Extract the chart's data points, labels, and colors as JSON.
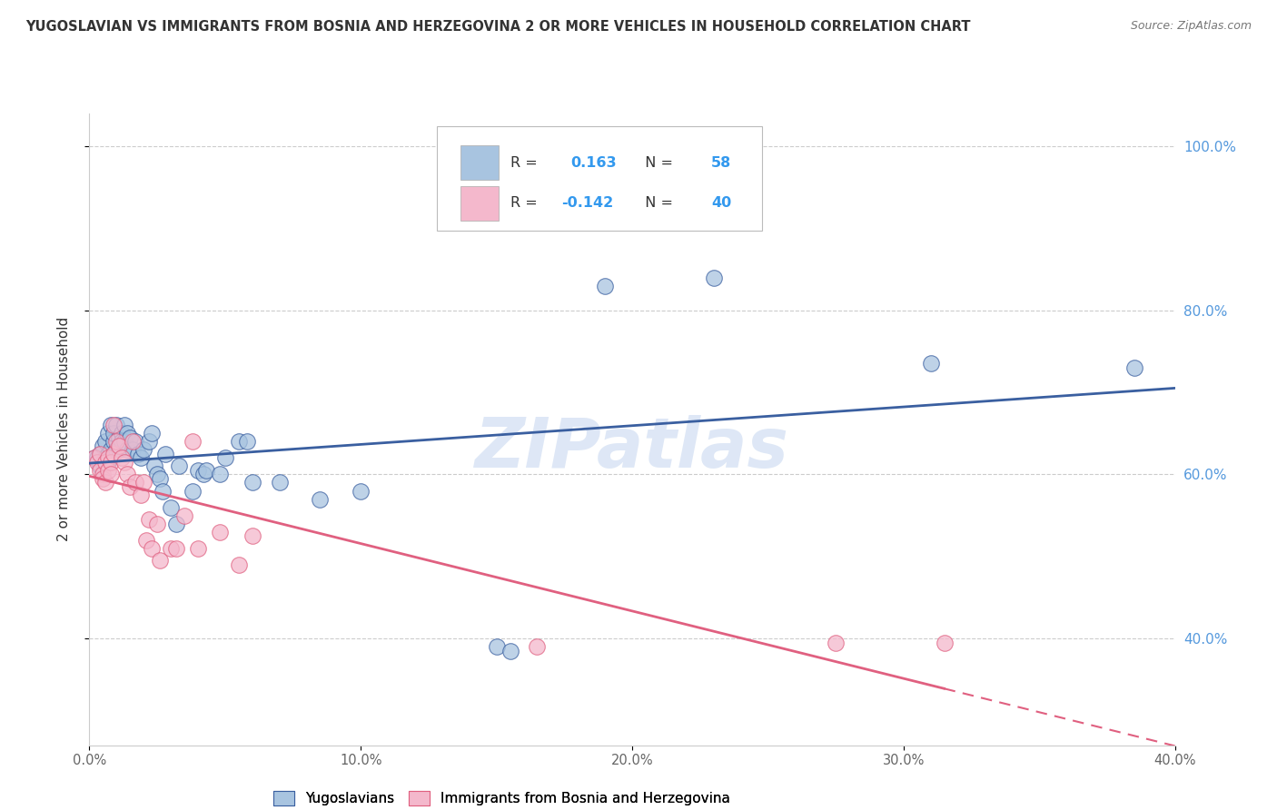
{
  "title": "YUGOSLAVIAN VS IMMIGRANTS FROM BOSNIA AND HERZEGOVINA 2 OR MORE VEHICLES IN HOUSEHOLD CORRELATION CHART",
  "source": "Source: ZipAtlas.com",
  "ylabel": "2 or more Vehicles in Household",
  "xlim": [
    0.0,
    0.4
  ],
  "ylim": [
    0.27,
    1.04
  ],
  "xticks": [
    0.0,
    0.1,
    0.2,
    0.3,
    0.4
  ],
  "yticks": [
    0.4,
    0.6,
    0.8,
    1.0
  ],
  "ytick_labels": [
    "40.0%",
    "60.0%",
    "80.0%",
    "100.0%"
  ],
  "xtick_labels": [
    "0.0%",
    "10.0%",
    "20.0%",
    "30.0%",
    "40.0%"
  ],
  "blue_color": "#a8c4e0",
  "pink_color": "#f4b8cc",
  "blue_line_color": "#3a5fa0",
  "pink_line_color": "#e06080",
  "watermark": "ZIPatlas",
  "watermark_color": "#c8d8f0",
  "background_color": "#ffffff",
  "grid_color": "#cccccc",
  "blue_scatter": [
    [
      0.002,
      0.62
    ],
    [
      0.003,
      0.62
    ],
    [
      0.004,
      0.625
    ],
    [
      0.004,
      0.61
    ],
    [
      0.005,
      0.635
    ],
    [
      0.005,
      0.615
    ],
    [
      0.006,
      0.62
    ],
    [
      0.006,
      0.64
    ],
    [
      0.007,
      0.65
    ],
    [
      0.007,
      0.625
    ],
    [
      0.007,
      0.615
    ],
    [
      0.008,
      0.63
    ],
    [
      0.008,
      0.66
    ],
    [
      0.008,
      0.62
    ],
    [
      0.009,
      0.64
    ],
    [
      0.009,
      0.65
    ],
    [
      0.01,
      0.63
    ],
    [
      0.01,
      0.66
    ],
    [
      0.011,
      0.63
    ],
    [
      0.011,
      0.645
    ],
    [
      0.012,
      0.65
    ],
    [
      0.012,
      0.64
    ],
    [
      0.013,
      0.66
    ],
    [
      0.013,
      0.64
    ],
    [
      0.014,
      0.65
    ],
    [
      0.014,
      0.63
    ],
    [
      0.015,
      0.645
    ],
    [
      0.016,
      0.63
    ],
    [
      0.017,
      0.64
    ],
    [
      0.018,
      0.625
    ],
    [
      0.019,
      0.62
    ],
    [
      0.02,
      0.63
    ],
    [
      0.022,
      0.64
    ],
    [
      0.023,
      0.65
    ],
    [
      0.024,
      0.61
    ],
    [
      0.025,
      0.6
    ],
    [
      0.026,
      0.595
    ],
    [
      0.027,
      0.58
    ],
    [
      0.028,
      0.625
    ],
    [
      0.03,
      0.56
    ],
    [
      0.032,
      0.54
    ],
    [
      0.033,
      0.61
    ],
    [
      0.038,
      0.58
    ],
    [
      0.04,
      0.605
    ],
    [
      0.042,
      0.6
    ],
    [
      0.043,
      0.605
    ],
    [
      0.048,
      0.6
    ],
    [
      0.05,
      0.62
    ],
    [
      0.055,
      0.64
    ],
    [
      0.058,
      0.64
    ],
    [
      0.06,
      0.59
    ],
    [
      0.07,
      0.59
    ],
    [
      0.085,
      0.57
    ],
    [
      0.1,
      0.58
    ],
    [
      0.15,
      0.39
    ],
    [
      0.155,
      0.385
    ],
    [
      0.19,
      0.83
    ],
    [
      0.23,
      0.84
    ],
    [
      0.31,
      0.735
    ],
    [
      0.385,
      0.73
    ]
  ],
  "pink_scatter": [
    [
      0.002,
      0.62
    ],
    [
      0.003,
      0.615
    ],
    [
      0.004,
      0.625
    ],
    [
      0.004,
      0.605
    ],
    [
      0.005,
      0.6
    ],
    [
      0.005,
      0.595
    ],
    [
      0.006,
      0.615
    ],
    [
      0.006,
      0.59
    ],
    [
      0.007,
      0.62
    ],
    [
      0.007,
      0.605
    ],
    [
      0.008,
      0.615
    ],
    [
      0.008,
      0.6
    ],
    [
      0.009,
      0.625
    ],
    [
      0.009,
      0.66
    ],
    [
      0.01,
      0.64
    ],
    [
      0.011,
      0.635
    ],
    [
      0.012,
      0.62
    ],
    [
      0.013,
      0.615
    ],
    [
      0.014,
      0.6
    ],
    [
      0.015,
      0.585
    ],
    [
      0.016,
      0.64
    ],
    [
      0.017,
      0.59
    ],
    [
      0.019,
      0.575
    ],
    [
      0.02,
      0.59
    ],
    [
      0.021,
      0.52
    ],
    [
      0.022,
      0.545
    ],
    [
      0.023,
      0.51
    ],
    [
      0.025,
      0.54
    ],
    [
      0.026,
      0.495
    ],
    [
      0.03,
      0.51
    ],
    [
      0.032,
      0.51
    ],
    [
      0.035,
      0.55
    ],
    [
      0.038,
      0.64
    ],
    [
      0.04,
      0.51
    ],
    [
      0.048,
      0.53
    ],
    [
      0.055,
      0.49
    ],
    [
      0.06,
      0.525
    ],
    [
      0.165,
      0.39
    ],
    [
      0.275,
      0.395
    ],
    [
      0.315,
      0.395
    ]
  ]
}
